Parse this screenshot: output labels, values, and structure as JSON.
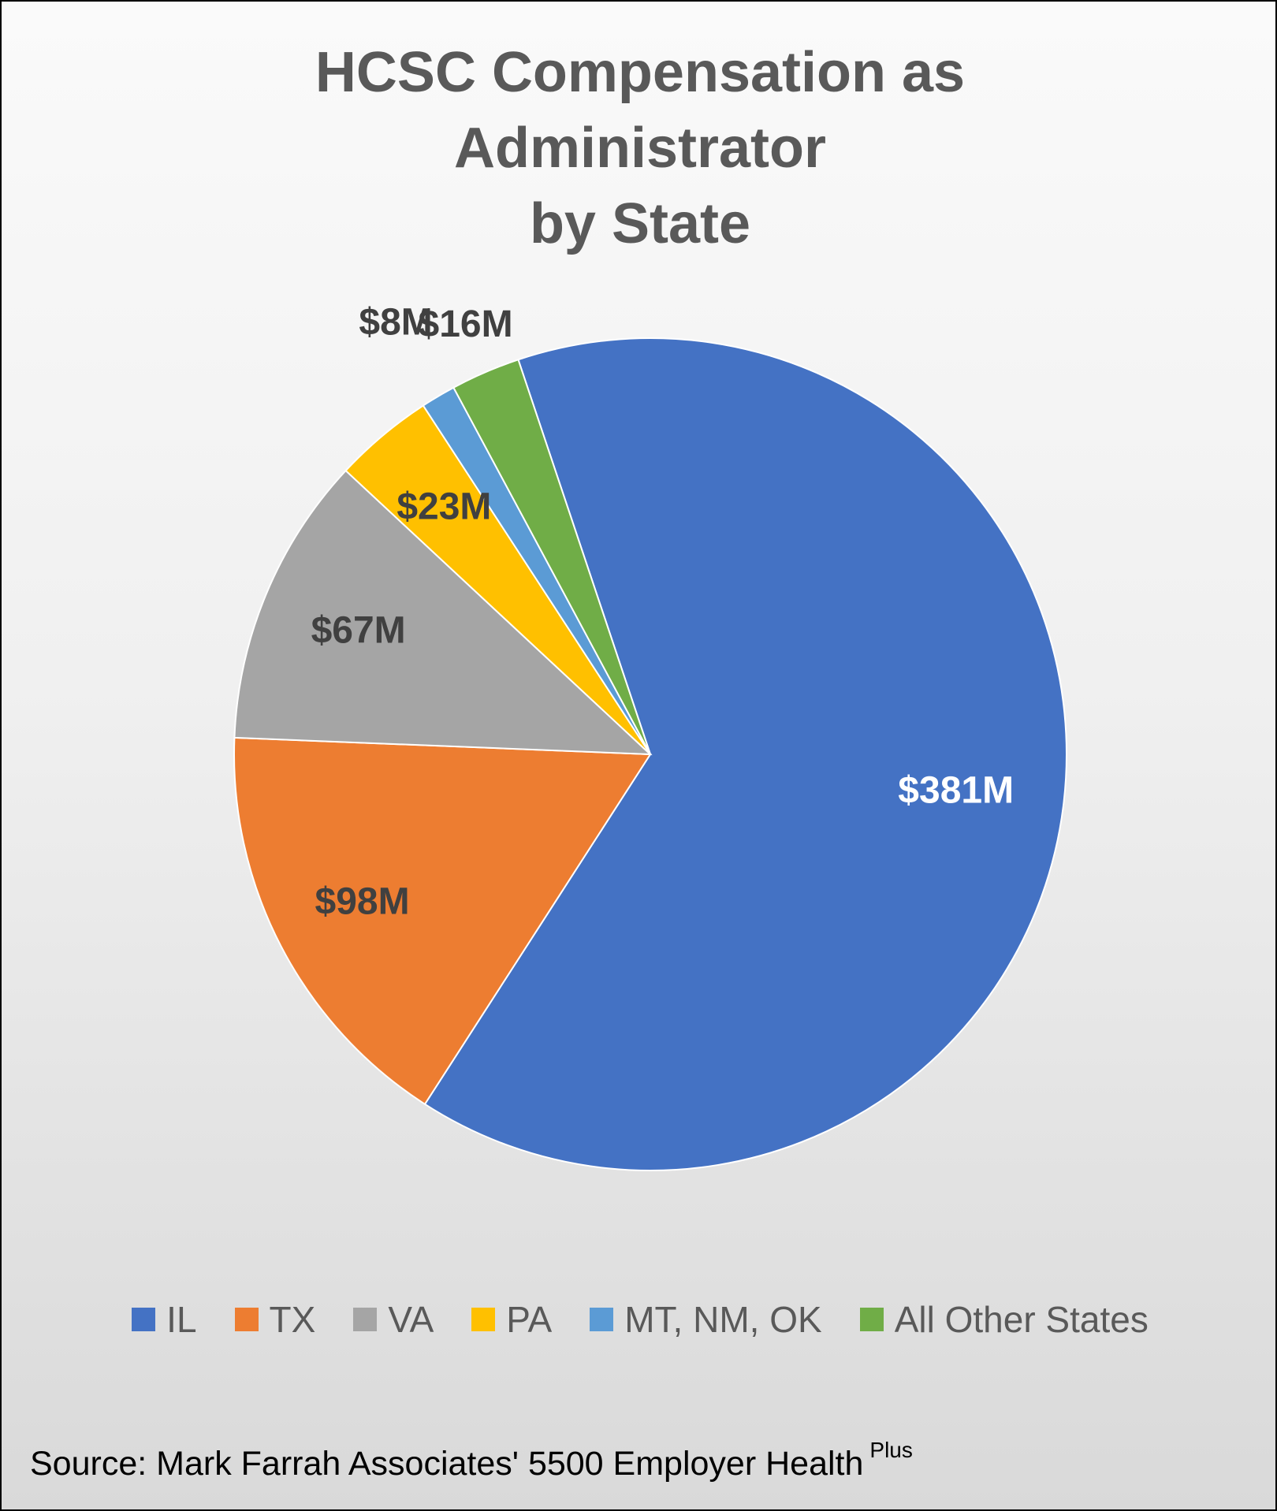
{
  "chart_data": {
    "type": "pie",
    "title_lines": [
      "HCSC Compensation as",
      "Administrator",
      "by State"
    ],
    "slices": [
      {
        "name": "IL",
        "value": 381,
        "label": "$381M",
        "color": "#4472C4",
        "label_color": "#FFFFFF"
      },
      {
        "name": "TX",
        "value": 98,
        "label": "$98M",
        "color": "#ED7D31",
        "label_color": "#404040"
      },
      {
        "name": "VA",
        "value": 67,
        "label": "$67M",
        "color": "#A5A5A5",
        "label_color": "#404040"
      },
      {
        "name": "PA",
        "value": 23,
        "label": "$23M",
        "color": "#FFC000",
        "label_color": "#404040"
      },
      {
        "name": "MT, NM, OK",
        "value": 8,
        "label": "$8M",
        "color": "#5B9BD5",
        "label_color": "#404040"
      },
      {
        "name": "All Other States",
        "value": 16,
        "label": "$16M",
        "color": "#70AD47",
        "label_color": "#404040"
      }
    ],
    "unit": "$M",
    "legend_position": "bottom"
  },
  "source": {
    "text": "Source:  Mark Farrah Associates' 5500 Employer Health",
    "superscript": "Plus"
  }
}
